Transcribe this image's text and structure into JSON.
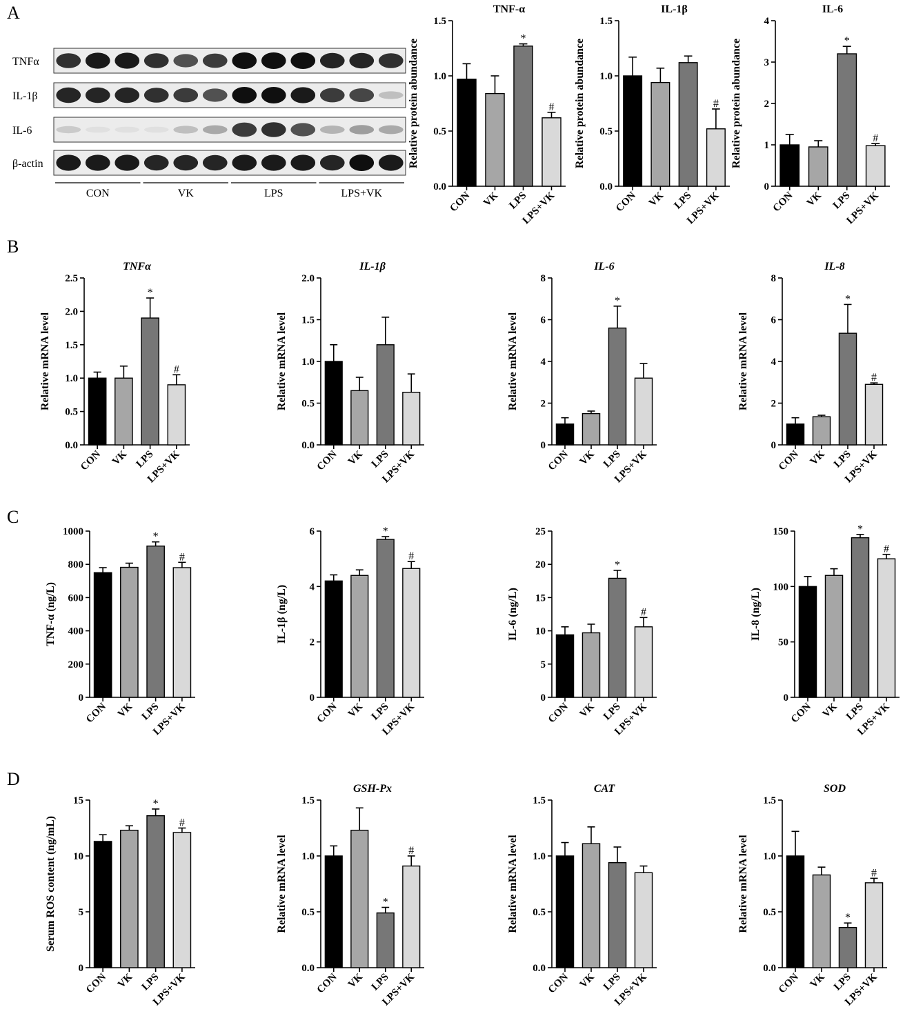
{
  "panels": {
    "a": "A",
    "b": "B",
    "c": "C",
    "d": "D"
  },
  "colors": {
    "CON": "#000000",
    "VK": "#a6a6a6",
    "LPS": "#777777",
    "LPS+VK": "#d9d9d9"
  },
  "blot": {
    "rows": [
      "TNFα",
      "IL-1β",
      "IL-6",
      "β-actin"
    ],
    "groups": [
      "CON",
      "VK",
      "LPS",
      "LPS+VK"
    ],
    "intensity": [
      [
        0.85,
        0.95,
        0.95,
        0.85,
        0.7,
        0.8,
        1.0,
        1.0,
        1.0,
        0.9,
        0.9,
        0.85
      ],
      [
        0.9,
        0.9,
        0.9,
        0.85,
        0.8,
        0.7,
        1.0,
        1.0,
        0.95,
        0.8,
        0.75,
        0.2
      ],
      [
        0.15,
        0.05,
        0.05,
        0.05,
        0.2,
        0.3,
        0.8,
        0.85,
        0.7,
        0.25,
        0.35,
        0.3
      ],
      [
        0.95,
        0.95,
        0.95,
        0.9,
        0.9,
        0.9,
        0.95,
        0.95,
        0.95,
        0.9,
        1.0,
        0.95
      ]
    ]
  },
  "chart_data": [
    {
      "id": "a-tnf",
      "type": "bar",
      "title": "TNF-α",
      "title_italic": false,
      "ylabel": "Relative protein abundance",
      "categories": [
        "CON",
        "VK",
        "LPS",
        "LPS+VK"
      ],
      "values": [
        0.97,
        0.84,
        1.27,
        0.62
      ],
      "errors": [
        0.14,
        0.16,
        0.02,
        0.05
      ],
      "marks": [
        "",
        "",
        "*",
        "#"
      ],
      "ylim": [
        0,
        1.5
      ],
      "yticks": [
        "0.0",
        "0.5",
        "1.0",
        "1.5"
      ]
    },
    {
      "id": "a-il1b",
      "type": "bar",
      "title": "IL-1β",
      "title_italic": false,
      "ylabel": "Relative protein abundance",
      "categories": [
        "CON",
        "VK",
        "LPS",
        "LPS+VK"
      ],
      "values": [
        1.0,
        0.94,
        1.12,
        0.52
      ],
      "errors": [
        0.17,
        0.13,
        0.06,
        0.18
      ],
      "marks": [
        "",
        "",
        "",
        "#"
      ],
      "ylim": [
        0,
        1.5
      ],
      "yticks": [
        "0.0",
        "0.5",
        "1.0",
        "1.5"
      ]
    },
    {
      "id": "a-il6",
      "type": "bar",
      "title": "IL-6",
      "title_italic": false,
      "ylabel": "Relative protein abundance",
      "categories": [
        "CON",
        "VK",
        "LPS",
        "LPS+VK"
      ],
      "values": [
        1.0,
        0.95,
        3.2,
        0.98
      ],
      "errors": [
        0.25,
        0.15,
        0.18,
        0.05
      ],
      "marks": [
        "",
        "",
        "*",
        "#"
      ],
      "ylim": [
        0,
        4
      ],
      "yticks": [
        "0",
        "1",
        "2",
        "3",
        "4"
      ]
    },
    {
      "id": "b-tnf",
      "type": "bar",
      "title": "TNFα",
      "title_italic": true,
      "ylabel": "Relative mRNA level",
      "categories": [
        "CON",
        "VK",
        "LPS",
        "LPS+VK"
      ],
      "values": [
        1.0,
        1.0,
        1.9,
        0.9
      ],
      "errors": [
        0.09,
        0.18,
        0.3,
        0.15
      ],
      "marks": [
        "",
        "",
        "*",
        "#"
      ],
      "ylim": [
        0,
        2.5
      ],
      "yticks": [
        "0.0",
        "0.5",
        "1.0",
        "1.5",
        "2.0",
        "2.5"
      ]
    },
    {
      "id": "b-il1b",
      "type": "bar",
      "title": "IL-1β",
      "title_italic": true,
      "ylabel": "Relative mRNA level",
      "categories": [
        "CON",
        "VK",
        "LPS",
        "LPS+VK"
      ],
      "values": [
        1.0,
        0.65,
        1.2,
        0.63
      ],
      "errors": [
        0.2,
        0.16,
        0.33,
        0.22
      ],
      "marks": [
        "",
        "",
        "",
        ""
      ],
      "ylim": [
        0,
        2.0
      ],
      "yticks": [
        "0.0",
        "0.5",
        "1.0",
        "1.5",
        "2.0"
      ]
    },
    {
      "id": "b-il6",
      "type": "bar",
      "title": "IL-6",
      "title_italic": true,
      "ylabel": "Relative mRNA level",
      "categories": [
        "CON",
        "VK",
        "LPS",
        "LPS+VK"
      ],
      "values": [
        1.0,
        1.5,
        5.6,
        3.2
      ],
      "errors": [
        0.3,
        0.12,
        1.05,
        0.7
      ],
      "marks": [
        "",
        "",
        "*",
        ""
      ],
      "ylim": [
        0,
        8
      ],
      "yticks": [
        "0",
        "2",
        "4",
        "6",
        "8"
      ]
    },
    {
      "id": "b-il8",
      "type": "bar",
      "title": "IL-8",
      "title_italic": true,
      "ylabel": "Relative mRNA level",
      "categories": [
        "CON",
        "VK",
        "LPS",
        "LPS+VK"
      ],
      "values": [
        1.0,
        1.35,
        5.35,
        2.9
      ],
      "errors": [
        0.3,
        0.07,
        1.38,
        0.07
      ],
      "marks": [
        "",
        "",
        "*",
        "#"
      ],
      "ylim": [
        0,
        8
      ],
      "yticks": [
        "0",
        "2",
        "4",
        "6",
        "8"
      ]
    },
    {
      "id": "c-tnf",
      "type": "bar",
      "title": "",
      "title_italic": false,
      "ylabel": "TNF-α (ng/L)",
      "categories": [
        "CON",
        "VK",
        "LPS",
        "LPS+VK"
      ],
      "values": [
        750,
        782,
        910,
        780
      ],
      "errors": [
        30,
        25,
        25,
        32
      ],
      "marks": [
        "",
        "",
        "*",
        "#"
      ],
      "ylim": [
        0,
        1000
      ],
      "yticks": [
        "0",
        "200",
        "400",
        "600",
        "800",
        "1000"
      ]
    },
    {
      "id": "c-il1b",
      "type": "bar",
      "title": "",
      "title_italic": false,
      "ylabel": "IL-1β (ng/L)",
      "categories": [
        "CON",
        "VK",
        "LPS",
        "LPS+VK"
      ],
      "values": [
        4.2,
        4.4,
        5.7,
        4.65
      ],
      "errors": [
        0.22,
        0.2,
        0.1,
        0.25
      ],
      "marks": [
        "",
        "",
        "*",
        "#"
      ],
      "ylim": [
        0,
        6
      ],
      "yticks": [
        "0",
        "2",
        "4",
        "6"
      ]
    },
    {
      "id": "c-il6",
      "type": "bar",
      "title": "",
      "title_italic": false,
      "ylabel": "IL-6 (ng/L)",
      "categories": [
        "CON",
        "VK",
        "LPS",
        "LPS+VK"
      ],
      "values": [
        9.4,
        9.7,
        17.9,
        10.6
      ],
      "errors": [
        1.2,
        1.3,
        1.2,
        1.4
      ],
      "marks": [
        "",
        "",
        "*",
        "#"
      ],
      "ylim": [
        0,
        25
      ],
      "yticks": [
        "0",
        "5",
        "10",
        "15",
        "20",
        "25"
      ]
    },
    {
      "id": "c-il8",
      "type": "bar",
      "title": "",
      "title_italic": false,
      "ylabel": "IL-8 (ng/L)",
      "categories": [
        "CON",
        "VK",
        "LPS",
        "LPS+VK"
      ],
      "values": [
        100,
        110,
        144,
        125
      ],
      "errors": [
        9,
        6,
        3,
        4
      ],
      "marks": [
        "",
        "",
        "*",
        "#"
      ],
      "ylim": [
        0,
        150
      ],
      "yticks": [
        "0",
        "50",
        "100",
        "150"
      ]
    },
    {
      "id": "d-ros",
      "type": "bar",
      "title": "",
      "title_italic": false,
      "ylabel": "Serum ROS content (ng/mL)",
      "categories": [
        "CON",
        "VK",
        "LPS",
        "LPS+VK"
      ],
      "values": [
        11.3,
        12.3,
        13.6,
        12.1
      ],
      "errors": [
        0.6,
        0.4,
        0.6,
        0.4
      ],
      "marks": [
        "",
        "",
        "*",
        "#"
      ],
      "ylim": [
        0,
        15
      ],
      "yticks": [
        "0",
        "5",
        "10",
        "15"
      ]
    },
    {
      "id": "d-gsh",
      "type": "bar",
      "title": "GSH-Px",
      "title_italic": true,
      "ylabel": "Relative mRNA level",
      "categories": [
        "CON",
        "VK",
        "LPS",
        "LPS+VK"
      ],
      "values": [
        1.0,
        1.23,
        0.49,
        0.91
      ],
      "errors": [
        0.09,
        0.2,
        0.05,
        0.09
      ],
      "marks": [
        "",
        "",
        "*",
        "#"
      ],
      "ylim": [
        0,
        1.5
      ],
      "yticks": [
        "0.0",
        "0.5",
        "1.0",
        "1.5"
      ]
    },
    {
      "id": "d-cat",
      "type": "bar",
      "title": "CAT",
      "title_italic": true,
      "ylabel": "Relative mRNA level",
      "categories": [
        "CON",
        "VK",
        "LPS",
        "LPS+VK"
      ],
      "values": [
        1.0,
        1.11,
        0.94,
        0.85
      ],
      "errors": [
        0.12,
        0.15,
        0.14,
        0.06
      ],
      "marks": [
        "",
        "",
        "",
        ""
      ],
      "ylim": [
        0,
        1.5
      ],
      "yticks": [
        "0.0",
        "0.5",
        "1.0",
        "1.5"
      ]
    },
    {
      "id": "d-sod",
      "type": "bar",
      "title": "SOD",
      "title_italic": true,
      "ylabel": "Relative mRNA level",
      "categories": [
        "CON",
        "VK",
        "LPS",
        "LPS+VK"
      ],
      "values": [
        1.0,
        0.83,
        0.36,
        0.76
      ],
      "errors": [
        0.22,
        0.07,
        0.04,
        0.04
      ],
      "marks": [
        "",
        "",
        "*",
        "#"
      ],
      "ylim": [
        0,
        1.5
      ],
      "yticks": [
        "0.0",
        "0.5",
        "1.0",
        "1.5"
      ]
    }
  ]
}
